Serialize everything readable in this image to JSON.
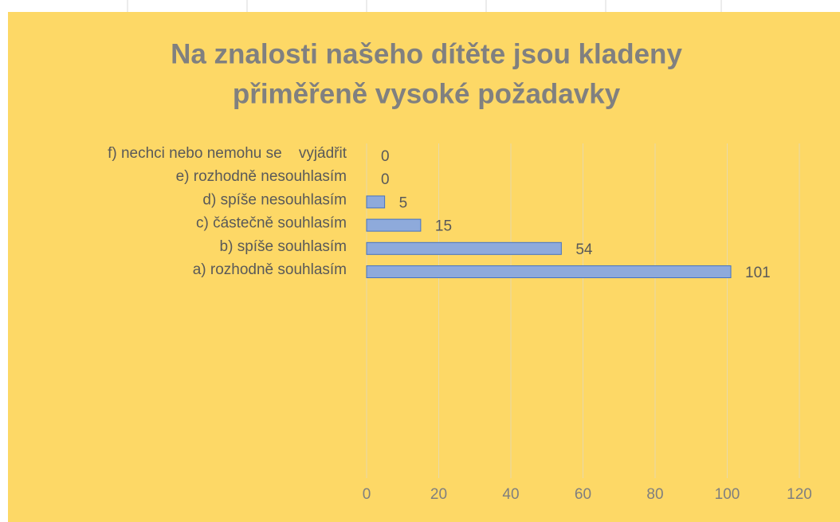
{
  "chart_data": {
    "type": "barh",
    "title": [
      "Na znalosti našeho dítěte jsou kladeny",
      "přiměřeně vysoké požadavky"
    ],
    "categories": [
      "a) rozhodně souhlasím",
      "b) spíše souhlasím",
      "c) částečně souhlasím",
      "d) spíše nesouhlasím",
      "e) rozhodně nesouhlasím",
      "f) nechci nebo nemohu se    vyjádřit"
    ],
    "values": [
      101,
      54,
      15,
      5,
      0,
      0
    ],
    "color": "#8eaadb",
    "edge_color": "#4472c4",
    "xlim": [
      0,
      120
    ],
    "xticks": [
      0,
      20,
      40,
      60,
      80,
      100,
      120
    ],
    "grid": true
  }
}
